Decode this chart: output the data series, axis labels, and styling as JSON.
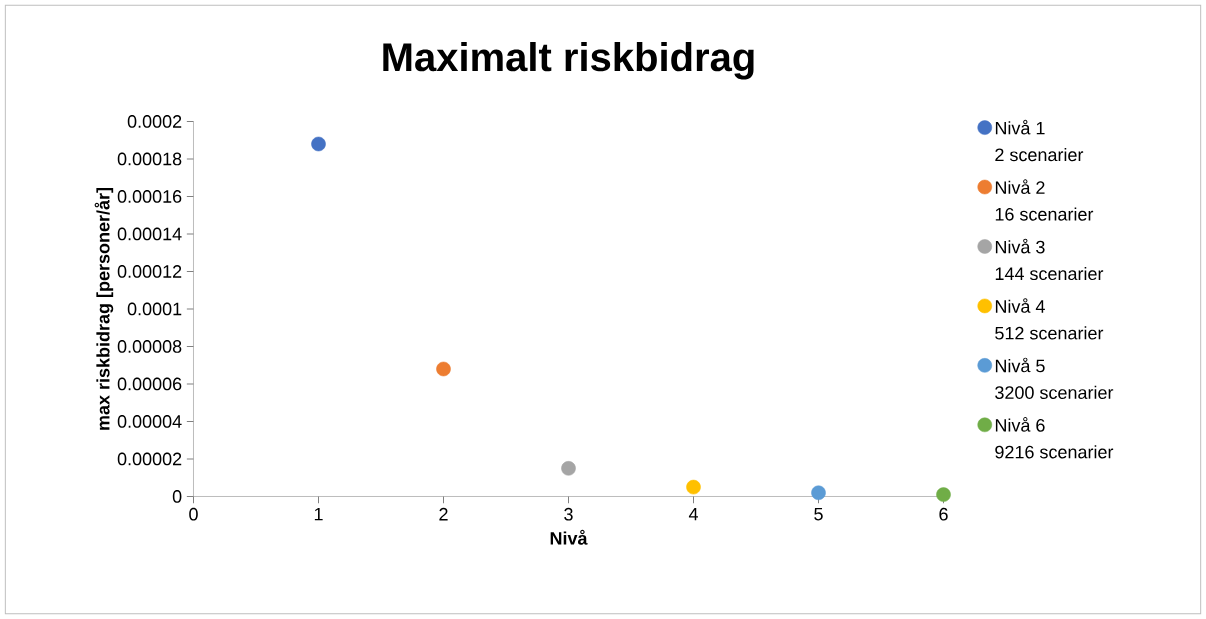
{
  "chart_data": {
    "type": "scatter",
    "title": "Maximalt riskbidrag",
    "xlabel": "Nivå",
    "ylabel": "max riskbidrag [personer/år]",
    "xlim": [
      0,
      6
    ],
    "xticks": [
      0,
      1,
      2,
      3,
      4,
      5,
      6
    ],
    "ylim": [
      0,
      0.0002
    ],
    "yticks": [
      {
        "value": 0,
        "label": "0"
      },
      {
        "value": 2e-05,
        "label": "0.00002"
      },
      {
        "value": 4e-05,
        "label": "0.00004"
      },
      {
        "value": 6e-05,
        "label": "0.00006"
      },
      {
        "value": 8e-05,
        "label": "0.00008"
      },
      {
        "value": 0.0001,
        "label": "0.0001"
      },
      {
        "value": 0.00012,
        "label": "0.00012"
      },
      {
        "value": 0.00014,
        "label": "0.00014"
      },
      {
        "value": 0.00016,
        "label": "0.00016"
      },
      {
        "value": 0.00018,
        "label": "0.00018"
      },
      {
        "value": 0.0002,
        "label": "0.0002"
      }
    ],
    "grid": false,
    "legend": "right",
    "marker": "circle",
    "series": [
      {
        "name": "Nivå 1\n2 scenarier",
        "color": "#4472c4",
        "x": [
          1
        ],
        "values": [
          0.000188
        ]
      },
      {
        "name": "Nivå 2\n16 scenarier",
        "color": "#ed7d31",
        "x": [
          2
        ],
        "values": [
          6.8e-05
        ]
      },
      {
        "name": "Nivå 3\n144 scenarier",
        "color": "#a5a5a5",
        "x": [
          3
        ],
        "values": [
          1.5e-05
        ]
      },
      {
        "name": "Nivå 4\n512 scenarier",
        "color": "#ffc000",
        "x": [
          4
        ],
        "values": [
          5e-06
        ]
      },
      {
        "name": "Nivå 5\n3200 scenarier",
        "color": "#5b9bd5",
        "x": [
          5
        ],
        "values": [
          2e-06
        ]
      },
      {
        "name": "Nivå 6\n9216 scenarier",
        "color": "#70ad47",
        "x": [
          6
        ],
        "values": [
          1e-06
        ]
      }
    ]
  }
}
